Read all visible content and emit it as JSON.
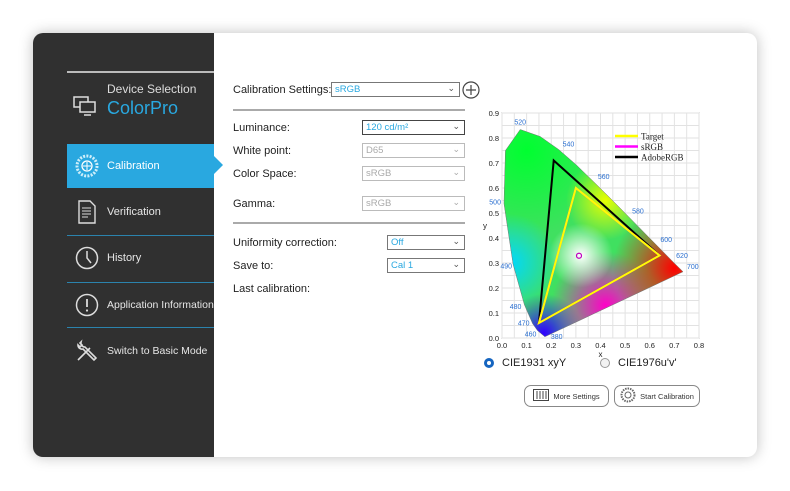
{
  "sidebar": {
    "device_label": "Device Selection",
    "device_name": "ColorPro",
    "items": [
      {
        "label": "Calibration",
        "icon": "calibration-icon",
        "active": true
      },
      {
        "label": "Verification",
        "icon": "document-icon"
      },
      {
        "label": "History",
        "icon": "clock-icon"
      },
      {
        "label": "Application Information",
        "icon": "info-icon"
      },
      {
        "label": "Switch to Basic Mode",
        "icon": "tools-icon"
      }
    ]
  },
  "settings": {
    "calibration_settings_label": "Calibration Settings:",
    "calibration_settings_value": "sRGB",
    "luminance_label": "Luminance:",
    "luminance_value": "120 cd/m²",
    "white_point_label": "White point:",
    "white_point_value": "D65",
    "color_space_label": "Color Space:",
    "color_space_value": "sRGB",
    "gamma_label": "Gamma:",
    "gamma_value": "sRGB",
    "uniformity_label": "Uniformity correction:",
    "uniformity_value": "Off",
    "save_to_label": "Save to:",
    "save_to_value": "Cal 1",
    "last_calibration_label": "Last calibration:"
  },
  "view": {
    "option1": "CIE1931 xyY",
    "option2": "CIE1976u'v'",
    "selected": "CIE1931 xyY"
  },
  "buttons": {
    "more_settings": "More Settings",
    "start_calibration": "Start Calibration"
  },
  "colors": {
    "accent": "#29a8e0",
    "sidebar": "#303030",
    "radio": "#1565c0"
  },
  "chart_data": {
    "type": "scatter",
    "xlabel": "x",
    "ylabel": "y",
    "xlim": [
      0,
      0.8
    ],
    "ylim": [
      0,
      0.9
    ],
    "xticks": [
      "0.0",
      "0.1",
      "0.2",
      "0.3",
      "0.4",
      "0.5",
      "0.6",
      "0.7",
      "0.8"
    ],
    "yticks": [
      "0.0",
      "0.1",
      "0.2",
      "0.3",
      "0.4",
      "0.5",
      "0.6",
      "0.7",
      "0.8",
      "0.9"
    ],
    "grid": true,
    "legend_position": "top-right",
    "spectral_locus": [
      [
        0.1741,
        0.005
      ],
      [
        0.144,
        0.03
      ],
      [
        0.124,
        0.058
      ],
      [
        0.091,
        0.133
      ],
      [
        0.045,
        0.295
      ],
      [
        0.008,
        0.538
      ],
      [
        0.014,
        0.75
      ],
      [
        0.074,
        0.834
      ],
      [
        0.155,
        0.806
      ],
      [
        0.23,
        0.754
      ],
      [
        0.302,
        0.692
      ],
      [
        0.373,
        0.624
      ],
      [
        0.444,
        0.555
      ],
      [
        0.512,
        0.487
      ],
      [
        0.575,
        0.424
      ],
      [
        0.627,
        0.372
      ],
      [
        0.691,
        0.308
      ],
      [
        0.735,
        0.265
      ]
    ],
    "wavelength_labels": [
      {
        "label": "520",
        "x": 0.074,
        "y": 0.834
      },
      {
        "label": "540",
        "x": 0.23,
        "y": 0.754
      },
      {
        "label": "560",
        "x": 0.373,
        "y": 0.624
      },
      {
        "label": "580",
        "x": 0.512,
        "y": 0.487
      },
      {
        "label": "600",
        "x": 0.627,
        "y": 0.372
      },
      {
        "label": "620",
        "x": 0.691,
        "y": 0.308
      },
      {
        "label": "700",
        "x": 0.735,
        "y": 0.265
      },
      {
        "label": "500",
        "x": 0.008,
        "y": 0.538
      },
      {
        "label": "490",
        "x": 0.045,
        "y": 0.295
      },
      {
        "label": "480",
        "x": 0.091,
        "y": 0.133
      },
      {
        "label": "470",
        "x": 0.124,
        "y": 0.058
      },
      {
        "label": "460",
        "x": 0.144,
        "y": 0.03
      },
      {
        "label": "380",
        "x": 0.1741,
        "y": 0.005
      }
    ],
    "series": [
      {
        "name": "Target",
        "color": "#ffff00",
        "points": [
          [
            0.64,
            0.33
          ],
          [
            0.3,
            0.6
          ],
          [
            0.15,
            0.06
          ]
        ]
      },
      {
        "name": "sRGB",
        "color": "#ff00ff",
        "points": [
          [
            0.64,
            0.33
          ],
          [
            0.3,
            0.6
          ],
          [
            0.15,
            0.06
          ]
        ]
      },
      {
        "name": "AdobeRGB",
        "color": "#000000",
        "points": [
          [
            0.64,
            0.33
          ],
          [
            0.21,
            0.71
          ],
          [
            0.15,
            0.06
          ]
        ]
      }
    ],
    "white_point": [
      0.3127,
      0.329
    ]
  }
}
